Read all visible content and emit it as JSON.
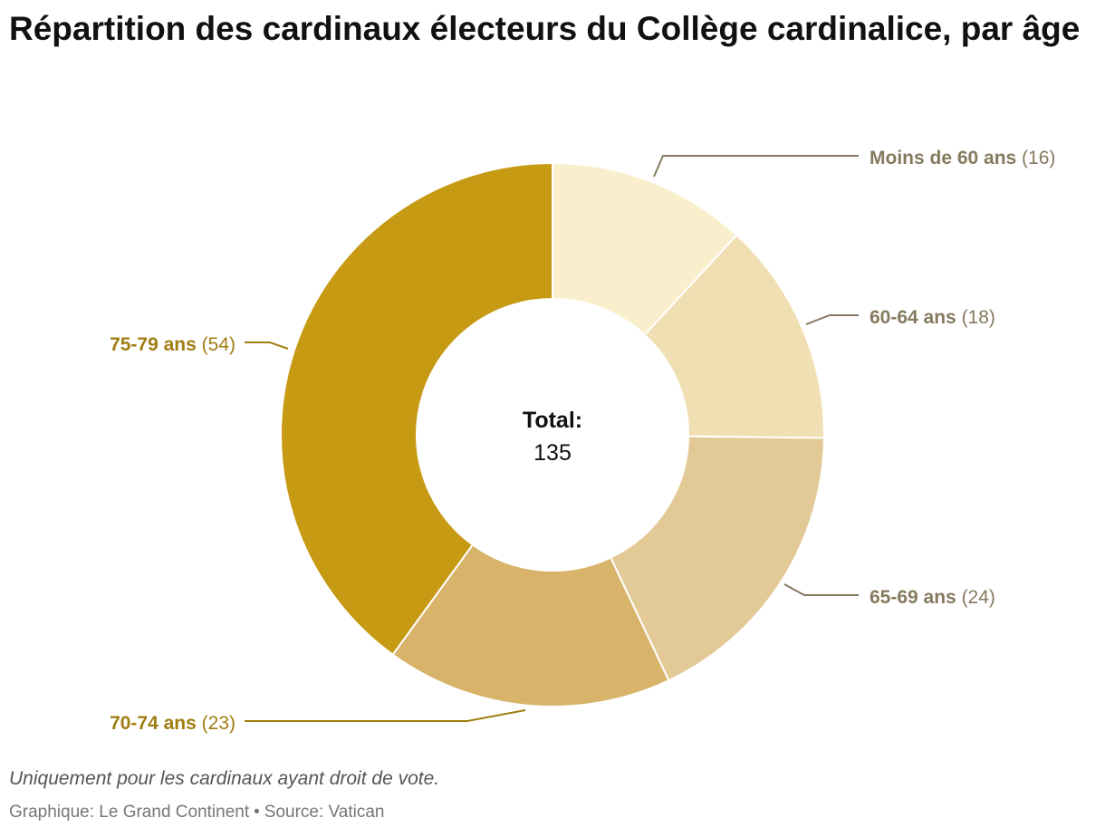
{
  "title": "Répartition des cardinaux électeurs du Collège cardinalice, par âge",
  "chart_data": {
    "type": "pie",
    "variant": "donut",
    "title": "Répartition des cardinaux électeurs du Collège cardinalice, par âge",
    "center_label": "Total:",
    "center_value": "135",
    "categories": [
      "Moins de 60 ans",
      "60-64 ans",
      "65-69 ans",
      "70-74 ans",
      "75-79 ans"
    ],
    "values": [
      16,
      18,
      24,
      23,
      54
    ],
    "value_labels": [
      "(16)",
      "(18)",
      "(24)",
      "(23)",
      "(54)"
    ],
    "colors": [
      "#faefcd",
      "#f1dfb4",
      "#e3c995",
      "#d8b36a",
      "#c79a14"
    ],
    "label_colors": [
      "#857a5e",
      "#857a5e",
      "#857a5e",
      "#a07d11",
      "#a07d11"
    ]
  },
  "footer": {
    "note": "Uniquement pour les cardinaux ayant droit de vote.",
    "credit": "Graphique: Le Grand Continent",
    "separator": "•",
    "source": "Source: Vatican"
  }
}
